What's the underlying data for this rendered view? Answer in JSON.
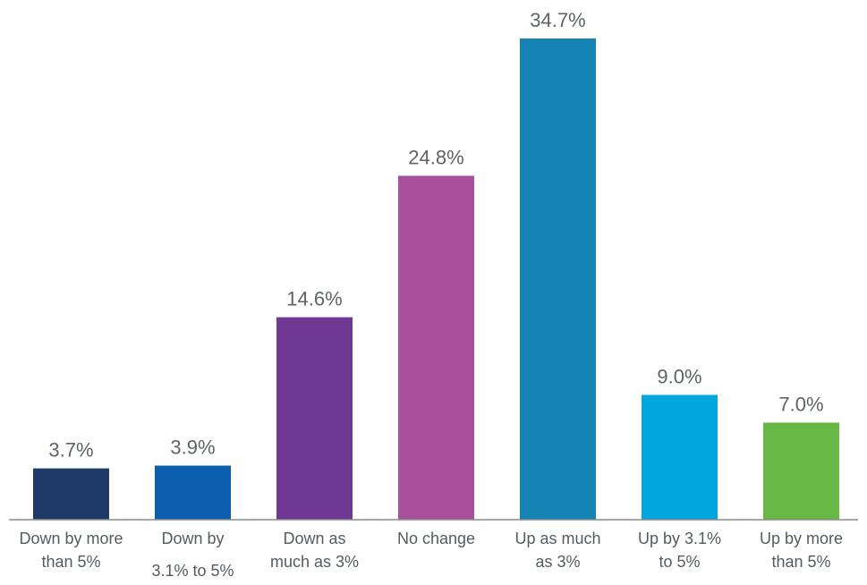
{
  "chart_data": {
    "type": "bar",
    "categories": [
      [
        "Down by more",
        "than 5%"
      ],
      [
        "Down by",
        "3.1% to 5%"
      ],
      [
        "Down as",
        "much as 3%"
      ],
      [
        "No change"
      ],
      [
        "Up as much",
        "as 3%"
      ],
      [
        "Up by 3.1%",
        "to 5%"
      ],
      [
        "Up by more",
        "than 5%"
      ]
    ],
    "values": [
      3.7,
      3.9,
      14.6,
      24.8,
      34.7,
      9.0,
      7.0
    ],
    "data_labels": [
      "3.7%",
      "3.9%",
      "14.6%",
      "24.8%",
      "34.7%",
      "9.0%",
      "7.0%"
    ],
    "colors": [
      "#1f3a68",
      "#0b5fae",
      "#6f3893",
      "#a8509c",
      "#1683b5",
      "#00a7df",
      "#67b845"
    ],
    "title": "",
    "xlabel": "",
    "ylabel": "",
    "ylim": [
      0,
      34.7
    ],
    "grid": false,
    "legend": "none"
  }
}
